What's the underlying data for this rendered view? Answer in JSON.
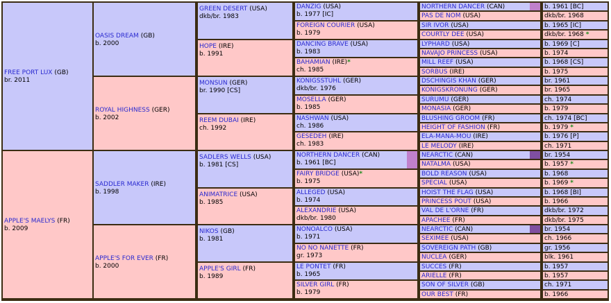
{
  "gen1": [
    {
      "name": "FREE PORT LUX",
      "country": "(GB)",
      "info": "br. 2011"
    },
    {
      "name": "APPLE'S MAELYS",
      "country": "(FR)",
      "info": "b. 2009"
    }
  ],
  "gen2": [
    {
      "name": "OASIS DREAM",
      "country": "(GB)",
      "info": "b. 2000"
    },
    {
      "name": "ROYAL HIGHNESS",
      "country": "(GER)",
      "info": "b. 2002"
    },
    {
      "name": "SADDLER MAKER",
      "country": "(IRE)",
      "info": "b. 1998"
    },
    {
      "name": "APPLE'S FOR EVER",
      "country": "(FR)",
      "info": "b. 2000"
    }
  ],
  "gen3": [
    {
      "name": "GREEN DESERT",
      "country": "(USA)",
      "info": "dkb/br. 1983"
    },
    {
      "name": "HOPE",
      "country": "(IRE)",
      "info": "b. 1991"
    },
    {
      "name": "MONSUN",
      "country": "(GER)",
      "info": "br. 1990 [CS]"
    },
    {
      "name": "REEM DUBAI",
      "country": "(IRE)",
      "info": "ch. 1992"
    },
    {
      "name": "SADLERS WELLS",
      "country": "(USA)",
      "info": "b. 1981 [CS]"
    },
    {
      "name": "ANIMATRICE",
      "country": "(USA)",
      "info": "b. 1985"
    },
    {
      "name": "NIKOS",
      "country": "(GB)",
      "info": "b. 1981"
    },
    {
      "name": "APPLE'S GIRL",
      "country": "(FR)",
      "info": "b. 1989"
    }
  ],
  "gen4": [
    {
      "name": "DANZIG",
      "country": "(USA)",
      "info": "b. 1977 [IC]"
    },
    {
      "name": "FOREIGN COURIER",
      "country": "(USA)",
      "info": "b. 1979"
    },
    {
      "name": "DANCING BRAVE",
      "country": "(USA)",
      "info": "b. 1983"
    },
    {
      "name": "BAHAMIAN",
      "country": "(IRE)",
      "info": "ch. 1985",
      "star": "*"
    },
    {
      "name": "KONIGSSTUHL",
      "country": "(GER)",
      "info": "dkb/br. 1976"
    },
    {
      "name": "MOSELLA",
      "country": "(GER)",
      "info": "b. 1985"
    },
    {
      "name": "NASHWAN",
      "country": "(USA)",
      "info": "ch. 1986"
    },
    {
      "name": "GESEDEH",
      "country": "(IRE)",
      "info": "ch. 1983"
    },
    {
      "name": "NORTHERN DANCER",
      "country": "(CAN)",
      "info": "b. 1961 [BC]",
      "marker": "#c080cc"
    },
    {
      "name": "FAIRY BRIDGE",
      "country": "(USA)",
      "info": "b. 1975",
      "star": "*"
    },
    {
      "name": "ALLEGED",
      "country": "(USA)",
      "info": "b. 1974"
    },
    {
      "name": "ALEXANDRIE",
      "country": "(USA)",
      "info": "dkb/br. 1980"
    },
    {
      "name": "NONOALCO",
      "country": "(USA)",
      "info": "b. 1971"
    },
    {
      "name": "NO NO NANETTE",
      "country": "(FR)",
      "info": "gr. 1973"
    },
    {
      "name": "LE PONTET",
      "country": "(FR)",
      "info": "b. 1965"
    },
    {
      "name": "SILVER GIRL",
      "country": "(FR)",
      "info": "b. 1979"
    }
  ],
  "gen5": [
    {
      "name": "NORTHERN DANCER",
      "country": "(CAN)",
      "info": "b. 1961 [BC]",
      "marker": "#c080cc"
    },
    {
      "name": "PAS DE NOM",
      "country": "(USA)",
      "info": "dkb/br. 1968"
    },
    {
      "name": "SIR IVOR",
      "country": "(USA)",
      "info": "b. 1965 [IC]"
    },
    {
      "name": "COURTLY DEE",
      "country": "(USA)",
      "info": "dkb/br. 1968",
      "star": "*"
    },
    {
      "name": "LYPHARD",
      "country": "(USA)",
      "info": "b. 1969 [C]"
    },
    {
      "name": "NAVAJO PRINCESS",
      "country": "(USA)",
      "info": "b. 1974"
    },
    {
      "name": "MILL REEF",
      "country": "(USA)",
      "info": "b. 1968 [CS]"
    },
    {
      "name": "SORBUS",
      "country": "(IRE)",
      "info": "b. 1975"
    },
    {
      "name": "DSCHINGIS KHAN",
      "country": "(GER)",
      "info": "br. 1961"
    },
    {
      "name": "KONIGSKRONUNG",
      "country": "(GER)",
      "info": "br. 1965"
    },
    {
      "name": "SURUMU",
      "country": "(GER)",
      "info": "ch. 1974"
    },
    {
      "name": "MONASIA",
      "country": "(GER)",
      "info": "b. 1979"
    },
    {
      "name": "BLUSHING GROOM",
      "country": "(FR)",
      "info": "ch. 1974 [BC]"
    },
    {
      "name": "HEIGHT OF FASHION",
      "country": "(FR)",
      "info": "b. 1979",
      "star": "*"
    },
    {
      "name": "ELA-MANA-MOU",
      "country": "(IRE)",
      "info": "b. 1976 [P]"
    },
    {
      "name": "LE MELODY",
      "country": "(IRE)",
      "info": "ch. 1971"
    },
    {
      "name": "NEARCTIC",
      "country": "(CAN)",
      "info": "br. 1954",
      "marker": "#7f4fa0"
    },
    {
      "name": "NATALMA",
      "country": "(USA)",
      "info": "b. 1957",
      "star": "*"
    },
    {
      "name": "BOLD REASON",
      "country": "(USA)",
      "info": "b. 1968"
    },
    {
      "name": "SPECIAL",
      "country": "(USA)",
      "info": "b. 1969",
      "star": "*"
    },
    {
      "name": "HOIST THE FLAG",
      "country": "(USA)",
      "info": "b. 1968 [BI]"
    },
    {
      "name": "PRINCESS POUT",
      "country": "(USA)",
      "info": "b. 1966"
    },
    {
      "name": "VAL DE L'ORNE",
      "country": "(FR)",
      "info": "dkb/br. 1972"
    },
    {
      "name": "APACHEE",
      "country": "(FR)",
      "info": "dkb/br. 1975"
    },
    {
      "name": "NEARCTIC",
      "country": "(CAN)",
      "info": "br. 1954",
      "marker": "#7f4fa0"
    },
    {
      "name": "SEXIMEE",
      "country": "(USA)",
      "info": "ch. 1966"
    },
    {
      "name": "SOVEREIGN PATH",
      "country": "(GB)",
      "info": "gr. 1956"
    },
    {
      "name": "NUCLEA",
      "country": "(GER)",
      "info": "blk. 1961"
    },
    {
      "name": "SUCCES",
      "country": "(FR)",
      "info": "b. 1957"
    },
    {
      "name": "ARIELLE",
      "country": "(FR)",
      "info": "b. 1957"
    },
    {
      "name": "SON OF SILVER",
      "country": "(GB)",
      "info": "ch. 1971"
    },
    {
      "name": "OUR BEST",
      "country": "(FR)",
      "info": "b. 1966"
    }
  ]
}
